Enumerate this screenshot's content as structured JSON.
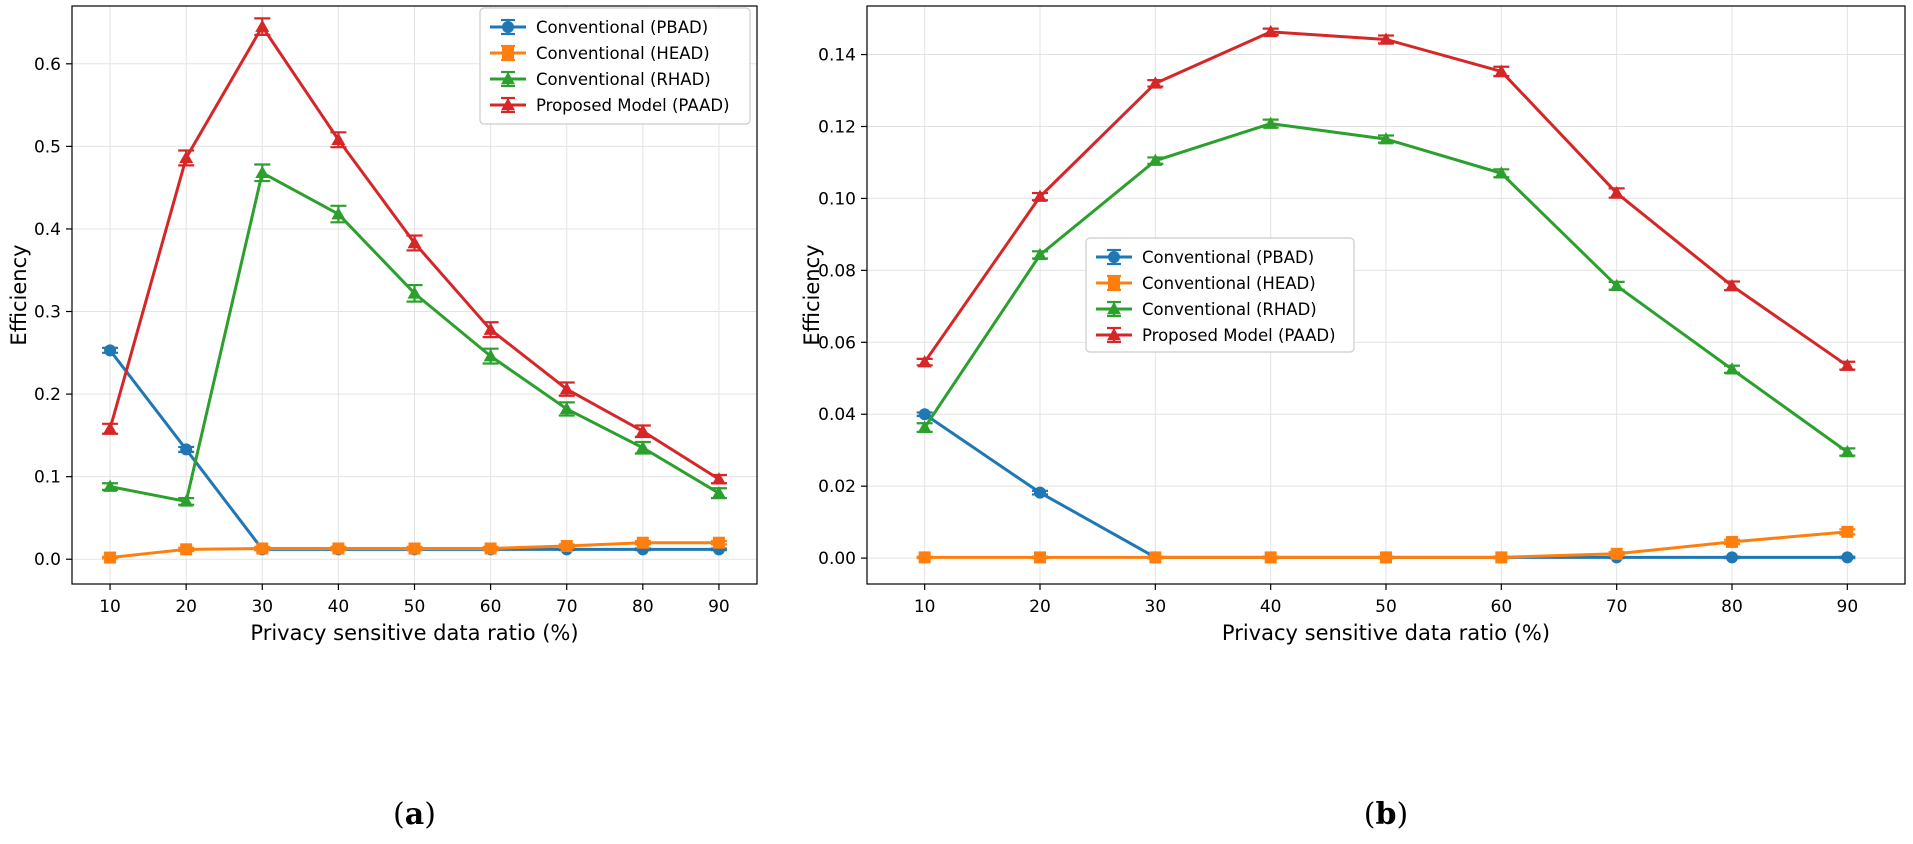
{
  "colors": {
    "PBAD": "#1f77b4",
    "HEAD": "#ff7f0e",
    "RHAD": "#2ca02c",
    "PAAD": "#d62728",
    "grid": "#e3e3e3"
  },
  "chart_data": [
    {
      "id": "a",
      "type": "line",
      "panel_label": "a",
      "panel_label_open": "(",
      "panel_label_close": ")",
      "xlabel": "Privacy sensitive data ratio (%)",
      "ylabel": "Efficiency",
      "x": [
        10,
        20,
        30,
        40,
        50,
        60,
        70,
        80,
        90
      ],
      "xticks": [
        "10",
        "20",
        "30",
        "40",
        "50",
        "60",
        "70",
        "80",
        "90"
      ],
      "xlim": [
        5,
        95
      ],
      "ylim": [
        -0.03,
        0.67
      ],
      "yticks": [
        "0.0",
        "0.1",
        "0.2",
        "0.3",
        "0.4",
        "0.5",
        "0.6"
      ],
      "grid": true,
      "legend_position": "top-right",
      "series": [
        {
          "key": "PBAD",
          "name": "Conventional (PBAD)",
          "marker": "circle",
          "values": [
            0.253,
            0.133,
            0.012,
            0.012,
            0.012,
            0.012,
            0.012,
            0.012,
            0.012
          ],
          "errors": [
            0.003,
            0.003,
            0.001,
            0.001,
            0.001,
            0.001,
            0.001,
            0.001,
            0.001
          ]
        },
        {
          "key": "HEAD",
          "name": "Conventional (HEAD)",
          "marker": "square",
          "values": [
            0.002,
            0.012,
            0.013,
            0.013,
            0.013,
            0.013,
            0.016,
            0.02,
            0.02
          ],
          "errors": [
            0.001,
            0.002,
            0.002,
            0.002,
            0.002,
            0.002,
            0.002,
            0.002,
            0.002
          ]
        },
        {
          "key": "RHAD",
          "name": "Conventional (RHAD)",
          "marker": "triangle",
          "values": [
            0.088,
            0.07,
            0.468,
            0.418,
            0.322,
            0.246,
            0.182,
            0.135,
            0.08
          ],
          "errors": [
            0.004,
            0.004,
            0.01,
            0.01,
            0.01,
            0.009,
            0.008,
            0.007,
            0.006
          ]
        },
        {
          "key": "PAAD",
          "name": "Proposed Model (PAAD)",
          "marker": "triangle",
          "values": [
            0.158,
            0.486,
            0.645,
            0.508,
            0.383,
            0.278,
            0.206,
            0.155,
            0.097
          ],
          "errors": [
            0.006,
            0.009,
            0.01,
            0.009,
            0.009,
            0.009,
            0.008,
            0.007,
            0.005
          ]
        }
      ]
    },
    {
      "id": "b",
      "type": "line",
      "panel_label": "b",
      "panel_label_open": "(",
      "panel_label_close": ")",
      "xlabel": "Privacy sensitive data ratio (%)",
      "ylabel": "Efficiency",
      "x": [
        10,
        20,
        30,
        40,
        50,
        60,
        70,
        80,
        90
      ],
      "xticks": [
        "10",
        "20",
        "30",
        "40",
        "50",
        "60",
        "70",
        "80",
        "90"
      ],
      "xlim": [
        5,
        95
      ],
      "ylim": [
        -0.0072,
        0.1535
      ],
      "yticks": [
        "0.00",
        "0.02",
        "0.04",
        "0.06",
        "0.08",
        "0.10",
        "0.12",
        "0.14"
      ],
      "grid": true,
      "legend_position": "center",
      "series": [
        {
          "key": "PBAD",
          "name": "Conventional (PBAD)",
          "marker": "circle",
          "values": [
            0.04,
            0.0182,
            0.0002,
            0.0002,
            0.0002,
            0.0002,
            0.0002,
            0.0002,
            0.0002
          ],
          "errors": [
            0.0005,
            0.0005,
            0.0002,
            0.0002,
            0.0002,
            0.0002,
            0.0002,
            0.0002,
            0.0002
          ]
        },
        {
          "key": "HEAD",
          "name": "Conventional (HEAD)",
          "marker": "square",
          "values": [
            0.0002,
            0.0002,
            0.0002,
            0.0002,
            0.0002,
            0.0002,
            0.0012,
            0.0045,
            0.0073
          ],
          "errors": [
            0.0002,
            0.0002,
            0.0002,
            0.0002,
            0.0002,
            0.0002,
            0.0005,
            0.0006,
            0.0007
          ]
        },
        {
          "key": "RHAD",
          "name": "Conventional (RHAD)",
          "marker": "triangle",
          "values": [
            0.0363,
            0.0843,
            0.1105,
            0.1208,
            0.1165,
            0.107,
            0.0757,
            0.0525,
            0.0295
          ],
          "errors": [
            0.0012,
            0.001,
            0.0009,
            0.0011,
            0.001,
            0.0011,
            0.0011,
            0.001,
            0.001
          ]
        },
        {
          "key": "PAAD",
          "name": "Proposed Model (PAAD)",
          "marker": "triangle",
          "values": [
            0.0545,
            0.1005,
            0.132,
            0.1463,
            0.1442,
            0.1353,
            0.1015,
            0.0757,
            0.0535
          ],
          "errors": [
            0.0009,
            0.001,
            0.0009,
            0.0009,
            0.0011,
            0.0013,
            0.0013,
            0.0012,
            0.0011
          ]
        }
      ]
    }
  ]
}
